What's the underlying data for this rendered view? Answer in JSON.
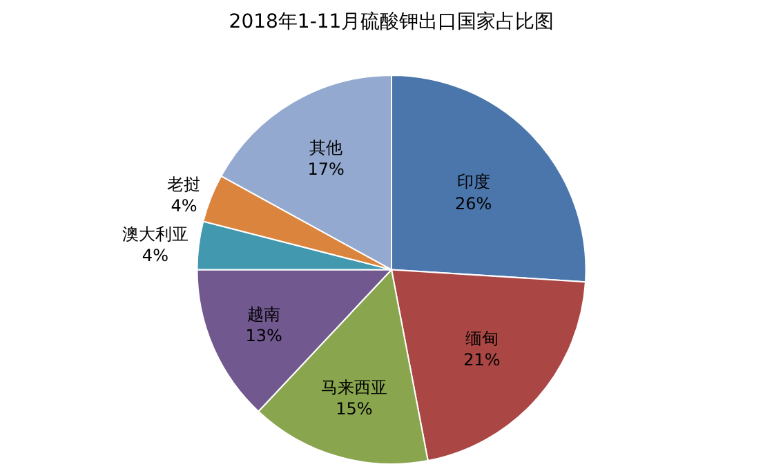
{
  "chart_data": {
    "type": "pie",
    "title": "2018年1-11月硫酸钾出口国家占比图",
    "categories": [
      "印度",
      "缅甸",
      "马来西亚",
      "越南",
      "澳大利亚",
      "老挝",
      "其他"
    ],
    "values": [
      26,
      21,
      15,
      13,
      4,
      4,
      17
    ],
    "value_labels": [
      "26%",
      "21%",
      "15%",
      "13%",
      "4%",
      "4%",
      "17%"
    ],
    "colors": [
      "#4a76ac",
      "#aa4643",
      "#89a54e",
      "#71588f",
      "#4198af",
      "#db843d",
      "#93a9cf"
    ],
    "legend": false
  }
}
